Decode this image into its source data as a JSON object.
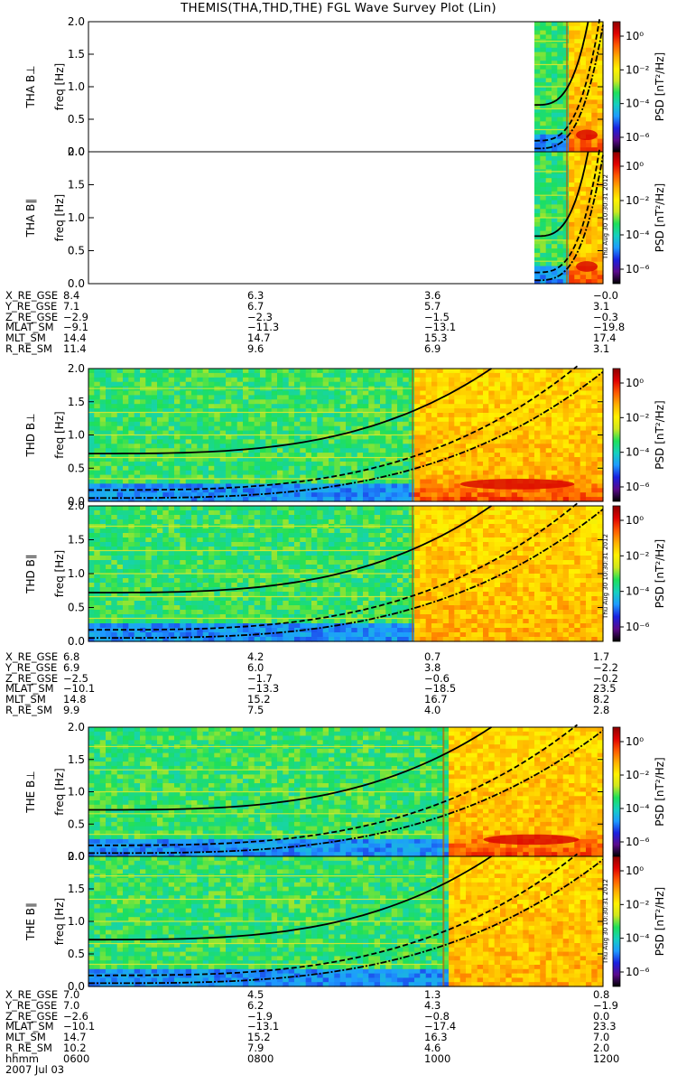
{
  "chart_data": {
    "type": "heatmap",
    "title": "THEMIS(THA,THD,THE) FGL Wave Survey Plot (Lin)",
    "date": "2007 Jul 03",
    "stamp": "Thu Aug 30 10:30:31 2012",
    "ylim": [
      0.0,
      2.0
    ],
    "y_ticks": [
      "0.0",
      "0.5",
      "1.0",
      "1.5",
      "2.0"
    ],
    "ylabel": "freq [Hz]",
    "colorbar_label": "PSD [nT²/Hz]",
    "colorbar_ticks": [
      "10⁰",
      "10⁻²",
      "10⁻⁴",
      "10⁻⁶"
    ],
    "colorscale": [
      "#000000",
      "#5a0a8c",
      "#1a20e0",
      "#1e9bff",
      "#15d0c0",
      "#1ee05a",
      "#cfe81f",
      "#fff200",
      "#ffb000",
      "#ff5a00",
      "#e00000",
      "#8c0000"
    ],
    "panels": [
      {
        "label": "THA B⊥",
        "probe": "THA",
        "start": 0.867,
        "gap": 0.93,
        "end": 1.0,
        "activity": "high"
      },
      {
        "label": "THA B∥",
        "probe": "THA",
        "start": 0.867,
        "gap": 0.93,
        "end": 1.0,
        "activity": "high"
      },
      {
        "label": "THD B⊥",
        "probe": "THD",
        "start": 0.0,
        "gap": 0.63,
        "end": 1.0,
        "activity": "high"
      },
      {
        "label": "THD B∥",
        "probe": "THD",
        "start": 0.0,
        "gap": 0.63,
        "end": 1.0,
        "activity": "mid"
      },
      {
        "label": "THE B⊥",
        "probe": "THE",
        "start": 0.0,
        "gap": 0.69,
        "end": 1.0,
        "activity": "high"
      },
      {
        "label": "THE B∥",
        "probe": "THE",
        "start": 0.0,
        "gap": 0.69,
        "end": 1.0,
        "activity": "mid"
      }
    ],
    "ephemeris": [
      {
        "rows": [
          "X_RE_GSE",
          "Y_RE_GSE",
          "Z_RE_GSE",
          "MLAT_SM",
          "MLT_SM",
          "R_RE_SM"
        ],
        "columns": [
          [
            "8.4",
            "7.1",
            "−2.9",
            "−9.1",
            "14.4",
            "11.4"
          ],
          [
            "6.3",
            "6.7",
            "−2.3",
            "−11.3",
            "14.7",
            "9.6"
          ],
          [
            "3.6",
            "5.7",
            "−1.5",
            "−13.1",
            "15.3",
            "6.9"
          ],
          [
            "−0.0",
            "3.1",
            "−0.3",
            "−19.8",
            "17.4",
            "3.1"
          ]
        ]
      },
      {
        "rows": [
          "X_RE_GSE",
          "Y_RE_GSE",
          "Z_RE_GSE",
          "MLAT_SM",
          "MLT_SM",
          "R_RE_SM"
        ],
        "columns": [
          [
            "6.8",
            "6.9",
            "−2.5",
            "−10.1",
            "14.8",
            "9.9"
          ],
          [
            "4.2",
            "6.0",
            "−1.7",
            "−13.3",
            "15.2",
            "7.5"
          ],
          [
            "0.7",
            "3.8",
            "−0.6",
            "−18.5",
            "16.7",
            "4.0"
          ],
          [
            "1.7",
            "−2.2",
            "−0.2",
            "23.5",
            "8.2",
            "2.8"
          ]
        ]
      },
      {
        "rows": [
          "X_RE_GSE",
          "Y_RE_GSE",
          "Z_RE_GSE",
          "MLAT_SM",
          "MLT_SM",
          "R_RE_SM",
          "hhmm"
        ],
        "columns": [
          [
            "7.0",
            "7.0",
            "−2.6",
            "−10.1",
            "14.7",
            "10.2",
            "0600"
          ],
          [
            "4.5",
            "6.2",
            "−1.9",
            "−13.1",
            "15.2",
            "7.9",
            "0800"
          ],
          [
            "1.3",
            "4.3",
            "−0.8",
            "−17.4",
            "16.3",
            "4.6",
            "1000"
          ],
          [
            "0.8",
            "−1.9",
            "0.0",
            "23.3",
            "7.0",
            "2.0",
            "1200"
          ]
        ]
      }
    ]
  }
}
